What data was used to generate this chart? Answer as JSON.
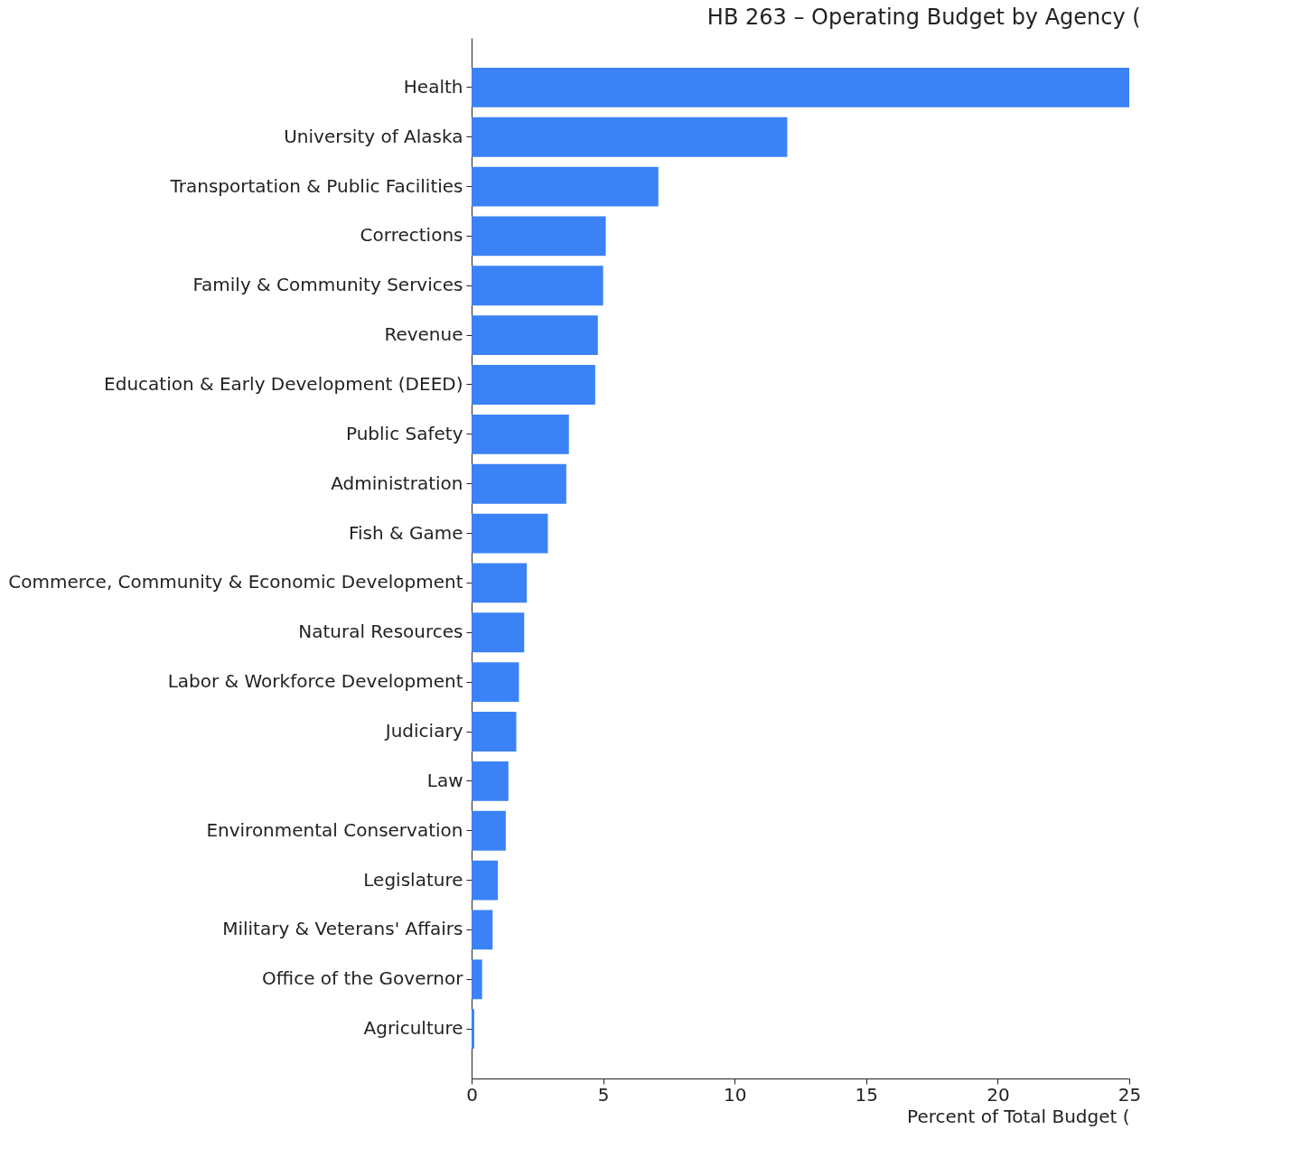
{
  "chart_data": {
    "type": "bar",
    "orientation": "horizontal",
    "title": "HB 263 – Operating Budget by Agency (",
    "xlabel": "Percent of Total Budget (",
    "categories": [
      "Health",
      "University of Alaska",
      "Transportation & Public Facilities",
      "Corrections",
      "Family & Community Services",
      "Revenue",
      "Education & Early Development (DEED)",
      "Public Safety",
      "Administration",
      "Fish & Game",
      "Commerce, Community & Economic Development",
      "Natural Resources",
      "Labor & Workforce Development",
      "Judiciary",
      "Law",
      "Environmental Conservation",
      "Legislature",
      "Military & Veterans' Affairs",
      "Office of the Governor",
      "Agriculture"
    ],
    "values": [
      25,
      12.0,
      7.1,
      5.1,
      5.0,
      4.8,
      4.7,
      3.7,
      3.6,
      2.9,
      2.1,
      2.0,
      1.8,
      1.7,
      1.4,
      1.3,
      1.0,
      0.8,
      0.4,
      0.1
    ],
    "color": "#3b82f6",
    "xlim": [
      0,
      25
    ],
    "xticks": [
      0,
      5,
      10,
      15,
      20,
      25
    ],
    "grid": false
  }
}
